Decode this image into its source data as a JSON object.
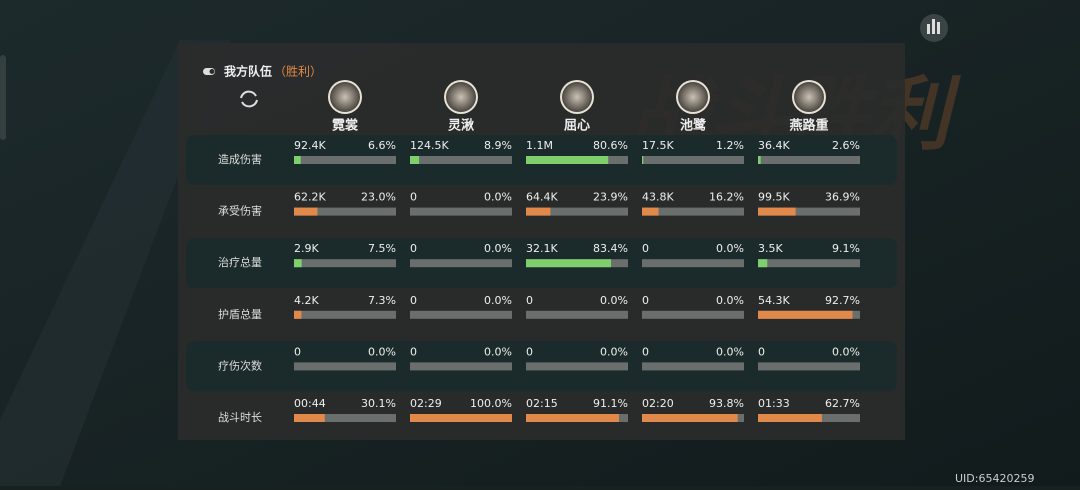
{
  "header": {
    "title": "我方队伍",
    "status": "（胜利）",
    "background_title": "战斗胜利"
  },
  "uid": "UID:65420259",
  "characters": [
    "霓裳",
    "灵湫",
    "屈心",
    "池鹭",
    "燕路重"
  ],
  "rows": [
    {
      "label": "造成伤害",
      "bar_color": "#7fcf6c",
      "highlight": true,
      "cells": [
        {
          "amount": "92.4K",
          "percent": 6.6,
          "percent_label": "6.6%"
        },
        {
          "amount": "124.5K",
          "percent": 8.9,
          "percent_label": "8.9%"
        },
        {
          "amount": "1.1M",
          "percent": 80.6,
          "percent_label": "80.6%"
        },
        {
          "amount": "17.5K",
          "percent": 1.2,
          "percent_label": "1.2%"
        },
        {
          "amount": "36.4K",
          "percent": 2.6,
          "percent_label": "2.6%"
        }
      ]
    },
    {
      "label": "承受伤害",
      "bar_color": "#e0894a",
      "highlight": false,
      "cells": [
        {
          "amount": "62.2K",
          "percent": 23.0,
          "percent_label": "23.0%"
        },
        {
          "amount": "0",
          "percent": 0,
          "percent_label": "0.0%"
        },
        {
          "amount": "64.4K",
          "percent": 23.9,
          "percent_label": "23.9%"
        },
        {
          "amount": "43.8K",
          "percent": 16.2,
          "percent_label": "16.2%"
        },
        {
          "amount": "99.5K",
          "percent": 36.9,
          "percent_label": "36.9%"
        }
      ]
    },
    {
      "label": "治疗总量",
      "bar_color": "#7fcf6c",
      "highlight": true,
      "cells": [
        {
          "amount": "2.9K",
          "percent": 7.5,
          "percent_label": "7.5%"
        },
        {
          "amount": "0",
          "percent": 0,
          "percent_label": "0.0%"
        },
        {
          "amount": "32.1K",
          "percent": 83.4,
          "percent_label": "83.4%"
        },
        {
          "amount": "0",
          "percent": 0,
          "percent_label": "0.0%"
        },
        {
          "amount": "3.5K",
          "percent": 9.1,
          "percent_label": "9.1%"
        }
      ]
    },
    {
      "label": "护盾总量",
      "bar_color": "#e0894a",
      "highlight": false,
      "cells": [
        {
          "amount": "4.2K",
          "percent": 7.3,
          "percent_label": "7.3%"
        },
        {
          "amount": "0",
          "percent": 0,
          "percent_label": "0.0%"
        },
        {
          "amount": "0",
          "percent": 0,
          "percent_label": "0.0%"
        },
        {
          "amount": "0",
          "percent": 0,
          "percent_label": "0.0%"
        },
        {
          "amount": "54.3K",
          "percent": 92.7,
          "percent_label": "92.7%"
        }
      ]
    },
    {
      "label": "疗伤次数",
      "bar_color": "#e0894a",
      "highlight": true,
      "cells": [
        {
          "amount": "0",
          "percent": 0,
          "percent_label": "0.0%"
        },
        {
          "amount": "0",
          "percent": 0,
          "percent_label": "0.0%"
        },
        {
          "amount": "0",
          "percent": 0,
          "percent_label": "0.0%"
        },
        {
          "amount": "0",
          "percent": 0,
          "percent_label": "0.0%"
        },
        {
          "amount": "0",
          "percent": 0,
          "percent_label": "0.0%"
        }
      ]
    },
    {
      "label": "战斗时长",
      "bar_color": "#e0894a",
      "highlight": false,
      "cells": [
        {
          "amount": "00:44",
          "percent": 30.1,
          "percent_label": "30.1%"
        },
        {
          "amount": "02:29",
          "percent": 100.0,
          "percent_label": "100.0%"
        },
        {
          "amount": "02:15",
          "percent": 91.1,
          "percent_label": "91.1%"
        },
        {
          "amount": "02:20",
          "percent": 93.8,
          "percent_label": "93.8%"
        },
        {
          "amount": "01:33",
          "percent": 62.7,
          "percent_label": "62.7%"
        }
      ]
    }
  ]
}
